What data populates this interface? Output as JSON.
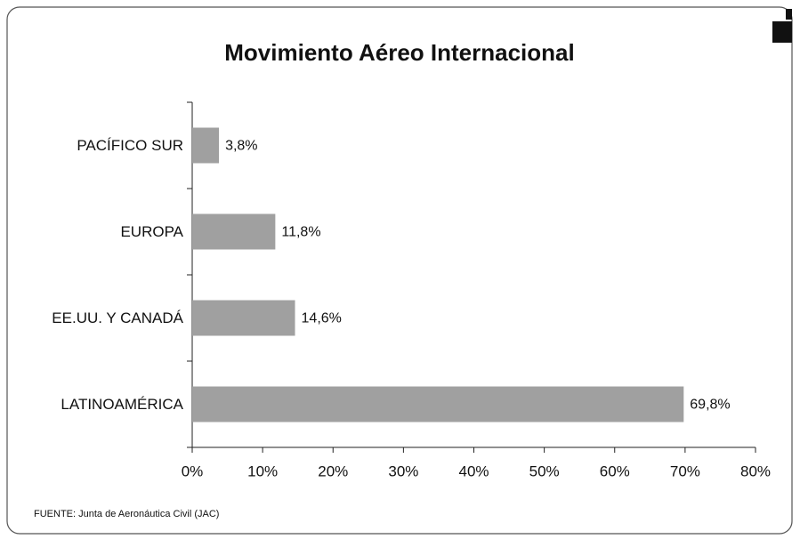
{
  "chart_data": {
    "type": "bar",
    "orientation": "horizontal",
    "title": "Movimiento Aéreo Internacional",
    "categories": [
      "PACÍFICO SUR",
      "EUROPA",
      "EE.UU. Y CANADÁ",
      "LATINOAMÉRICA"
    ],
    "values": [
      3.8,
      11.8,
      14.6,
      69.8
    ],
    "value_labels": [
      "3,8%",
      "11,8%",
      "14,6%",
      "69,8%"
    ],
    "color": "#a0a0a0",
    "xlim": [
      0,
      80
    ],
    "xticks": [
      {
        "value": 0,
        "label": "0%"
      },
      {
        "value": 10,
        "label": "10%"
      },
      {
        "value": 20,
        "label": "20%"
      },
      {
        "value": 30,
        "label": "30%"
      },
      {
        "value": 40,
        "label": "40%"
      },
      {
        "value": 50,
        "label": "50%"
      },
      {
        "value": 60,
        "label": "60%"
      },
      {
        "value": 70,
        "label": "70%"
      },
      {
        "value": 80,
        "label": "80%"
      }
    ],
    "source": "FUENTE: Junta de Aeronáutica Civil (JAC)"
  }
}
